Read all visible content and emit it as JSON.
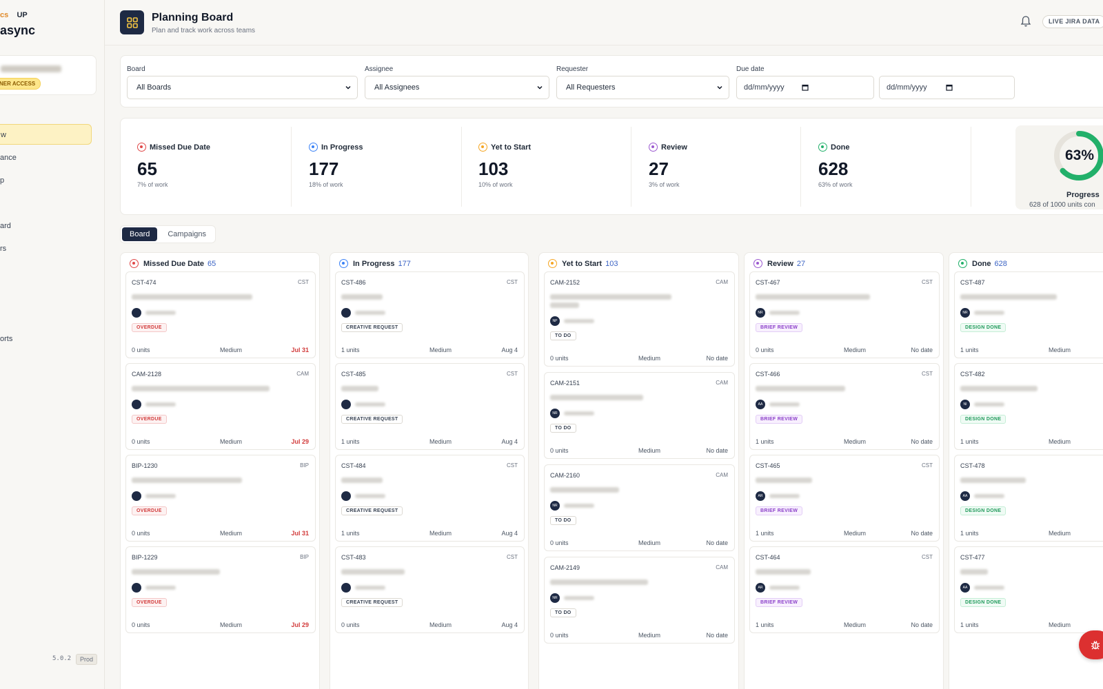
{
  "sidebar": {
    "brand_small_a": "cs",
    "brand_small_b": "UP",
    "brand_big": "async",
    "owner_badge": "NER ACCESS",
    "nav": [
      "w",
      "ance",
      "p",
      "ard",
      "rs",
      "orts"
    ],
    "version": "5.0.2",
    "env": "Prod"
  },
  "header": {
    "title": "Planning Board",
    "subtitle": "Plan and track work across teams",
    "live_badge": "LIVE JIRA DATA"
  },
  "filters": {
    "board_label": "Board",
    "board_value": "All Boards",
    "assignee_label": "Assignee",
    "assignee_value": "All Assignees",
    "requester_label": "Requester",
    "requester_value": "All Requesters",
    "due_label": "Due date",
    "date_from": "dd/mm/yyyy",
    "date_to": "dd/mm/yyyy"
  },
  "stats": [
    {
      "label": "Missed Due Date",
      "value": "65",
      "sub": "7% of work",
      "color": "#e04848"
    },
    {
      "label": "In Progress",
      "value": "177",
      "sub": "18% of work",
      "color": "#3b82f6"
    },
    {
      "label": "Yet to Start",
      "value": "103",
      "sub": "10% of work",
      "color": "#f5a623"
    },
    {
      "label": "Review",
      "value": "27",
      "sub": "3% of work",
      "color": "#9b59d0"
    },
    {
      "label": "Done",
      "value": "628",
      "sub": "63% of work",
      "color": "#22b06a"
    }
  ],
  "progress": {
    "percent_label": "63%",
    "fraction": 0.63,
    "title": "Progress",
    "sub": "628 of 1000 units con"
  },
  "tabs": [
    "Board",
    "Campaigns"
  ],
  "columns": [
    {
      "title": "Missed Due Date",
      "count": "65",
      "color": "#e04848",
      "cards": [
        {
          "key": "CST-474",
          "proj": "CST",
          "badge": "OVERDUE",
          "units": "0 units",
          "prio": "Medium",
          "date": "Jul 31"
        },
        {
          "key": "CAM-2128",
          "proj": "CAM",
          "badge": "OVERDUE",
          "units": "0 units",
          "prio": "Medium",
          "date": "Jul 29"
        },
        {
          "key": "BIP-1230",
          "proj": "BIP",
          "badge": "OVERDUE",
          "units": "0 units",
          "prio": "Medium",
          "date": "Jul 31"
        },
        {
          "key": "BIP-1229",
          "proj": "BIP",
          "badge": "OVERDUE",
          "units": "0 units",
          "prio": "Medium",
          "date": "Jul 29"
        }
      ]
    },
    {
      "title": "In Progress",
      "count": "177",
      "color": "#3b82f6",
      "cards": [
        {
          "key": "CST-486",
          "proj": "CST",
          "badge": "CREATIVE REQUEST",
          "units": "1 units",
          "prio": "Medium",
          "date": "Aug 4"
        },
        {
          "key": "CST-485",
          "proj": "CST",
          "badge": "CREATIVE REQUEST",
          "units": "1 units",
          "prio": "Medium",
          "date": "Aug 4"
        },
        {
          "key": "CST-484",
          "proj": "CST",
          "badge": "CREATIVE REQUEST",
          "units": "1 units",
          "prio": "Medium",
          "date": "Aug 4"
        },
        {
          "key": "CST-483",
          "proj": "CST",
          "badge": "CREATIVE REQUEST",
          "units": "0 units",
          "prio": "Medium",
          "date": "Aug 4"
        }
      ]
    },
    {
      "title": "Yet to Start",
      "count": "103",
      "color": "#f5a623",
      "cards": [
        {
          "key": "CAM-2152",
          "proj": "CAM",
          "badge": "TO DO",
          "units": "0 units",
          "prio": "Medium",
          "date": "No date",
          "avatar": "NP"
        },
        {
          "key": "CAM-2151",
          "proj": "CAM",
          "badge": "TO DO",
          "units": "0 units",
          "prio": "Medium",
          "date": "No date",
          "avatar": "NR"
        },
        {
          "key": "CAM-2160",
          "proj": "CAM",
          "badge": "TO DO",
          "units": "0 units",
          "prio": "Medium",
          "date": "No date",
          "avatar": "NR"
        },
        {
          "key": "CAM-2149",
          "proj": "CAM",
          "badge": "TO DO",
          "units": "0 units",
          "prio": "Medium",
          "date": "No date",
          "avatar": "NR"
        }
      ]
    },
    {
      "title": "Review",
      "count": "27",
      "color": "#9b59d0",
      "cards": [
        {
          "key": "CST-467",
          "proj": "CST",
          "badge": "BRIEF REVIEW",
          "units": "0 units",
          "prio": "Medium",
          "date": "No date",
          "avatar": "NR"
        },
        {
          "key": "CST-466",
          "proj": "CST",
          "badge": "BRIEF REVIEW",
          "units": "1 units",
          "prio": "Medium",
          "date": "No date",
          "avatar": "AA"
        },
        {
          "key": "CST-465",
          "proj": "CST",
          "badge": "BRIEF REVIEW",
          "units": "1 units",
          "prio": "Medium",
          "date": "No date",
          "avatar": "AR"
        },
        {
          "key": "CST-464",
          "proj": "CST",
          "badge": "BRIEF REVIEW",
          "units": "1 units",
          "prio": "Medium",
          "date": "No date",
          "avatar": "AR"
        }
      ]
    },
    {
      "title": "Done",
      "count": "628",
      "color": "#22b06a",
      "cards": [
        {
          "key": "CST-487",
          "proj": "",
          "badge": "DESIGN DONE",
          "units": "1 units",
          "prio": "Medium",
          "date": "",
          "avatar": "NR"
        },
        {
          "key": "CST-482",
          "proj": "",
          "badge": "DESIGN DONE",
          "units": "1 units",
          "prio": "Medium",
          "date": "",
          "avatar": "NI"
        },
        {
          "key": "CST-478",
          "proj": "",
          "badge": "DESIGN DONE",
          "units": "1 units",
          "prio": "Medium",
          "date": "",
          "avatar": "AA"
        },
        {
          "key": "CST-477",
          "proj": "",
          "badge": "DESIGN DONE",
          "units": "1 units",
          "prio": "Medium",
          "date": "",
          "avatar": "AA"
        }
      ]
    }
  ]
}
